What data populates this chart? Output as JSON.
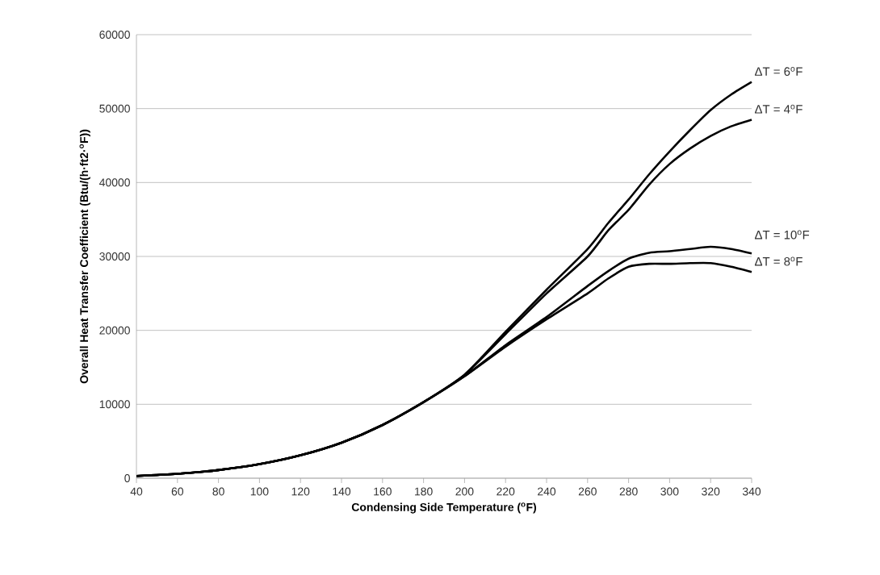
{
  "chart_data": {
    "type": "line",
    "xlabel": "Condensing Side Temperature ($^{o}$F)",
    "ylabel": "Overall Heat Transfer Coefficient (Btu/(h·ft2·$^{o}$F))",
    "x": [
      40,
      60,
      80,
      100,
      120,
      140,
      160,
      180,
      200,
      220,
      240,
      260,
      270,
      280,
      290,
      300,
      310,
      320,
      330,
      340
    ],
    "series": [
      {
        "name": "ΔT = 6$^{o}$F",
        "color": "#000000",
        "values": [
          300,
          600,
          1100,
          1900,
          3100,
          4800,
          7200,
          10300,
          14000,
          19800,
          25500,
          31000,
          34500,
          37700,
          41100,
          44200,
          47100,
          49800,
          51900,
          53600
        ]
      },
      {
        "name": "ΔT = 4$^{o}$F",
        "color": "#000000",
        "values": [
          300,
          600,
          1100,
          1900,
          3100,
          4800,
          7200,
          10300,
          14000,
          19500,
          25000,
          30000,
          33500,
          36300,
          39700,
          42500,
          44600,
          46300,
          47600,
          48500
        ]
      },
      {
        "name": "ΔT = 10$^{o}$F",
        "color": "#000000",
        "values": [
          300,
          600,
          1100,
          1900,
          3100,
          4800,
          7200,
          10300,
          13800,
          18000,
          21800,
          26000,
          28000,
          29700,
          30500,
          30700,
          31000,
          31300,
          31000,
          30400
        ]
      },
      {
        "name": "ΔT = 8$^{o}$F",
        "color": "#000000",
        "values": [
          300,
          600,
          1100,
          1900,
          3100,
          4800,
          7200,
          10300,
          13800,
          17800,
          21500,
          25000,
          27000,
          28600,
          29000,
          29000,
          29100,
          29100,
          28600,
          27900
        ]
      }
    ],
    "xlim": [
      40,
      340
    ],
    "xticks": [
      40,
      60,
      80,
      100,
      120,
      140,
      160,
      180,
      200,
      220,
      240,
      260,
      280,
      300,
      320,
      340
    ],
    "ylim": [
      0,
      60000
    ],
    "yticks": [
      0,
      10000,
      20000,
      30000,
      40000,
      50000,
      60000
    ],
    "grid": "y",
    "legend": false,
    "marker": "none",
    "line_style": "solid"
  }
}
